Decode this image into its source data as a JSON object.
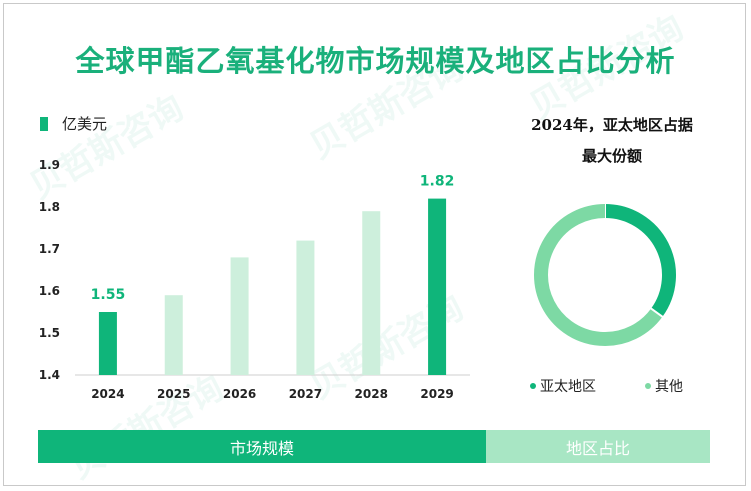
{
  "title": "全球甲酯乙氧基化物市场规模及地区占比分析",
  "unit_label": "亿美元",
  "watermark_text": "贝哲斯咨询",
  "colors": {
    "accent": "#0fb57a",
    "light_bar": "#cdefdc",
    "other": "#7dd9a4",
    "footer_light": "#a8e6c4"
  },
  "chart_data": [
    {
      "type": "bar",
      "categories": [
        "2024",
        "2025",
        "2026",
        "2027",
        "2028",
        "2029"
      ],
      "values": [
        1.55,
        1.59,
        1.68,
        1.72,
        1.79,
        1.82
      ],
      "highlighted": [
        true,
        false,
        false,
        false,
        false,
        true
      ],
      "data_labels": [
        "1.55",
        "",
        "",
        "",
        "",
        "1.82"
      ],
      "ylim": [
        1.4,
        1.9
      ],
      "yticks": [
        "1.4",
        "1.5",
        "1.6",
        "1.7",
        "1.8",
        "1.9"
      ],
      "ylabel": "亿美元",
      "xlabel": ""
    },
    {
      "type": "pie",
      "title_line1": "2024年，亚太地区占据",
      "title_line2": "最大份额",
      "labels": [
        "亚太地区",
        "其他"
      ],
      "values": [
        35,
        65
      ],
      "donut": true
    }
  ],
  "footer": {
    "left_label": "市场规模",
    "right_label": "地区占比"
  }
}
